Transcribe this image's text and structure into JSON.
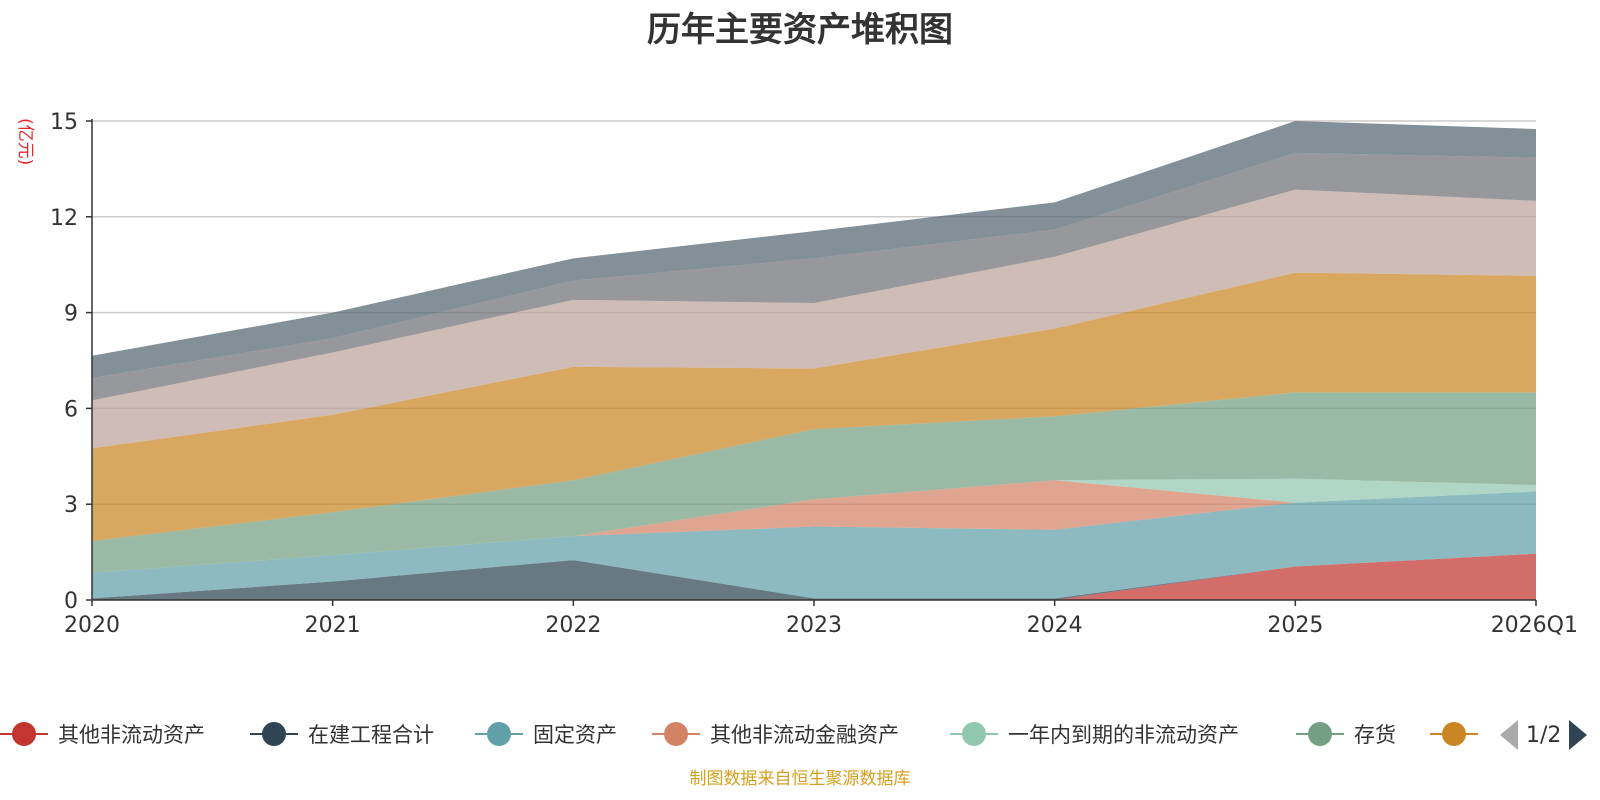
{
  "chart_data": {
    "type": "area",
    "stacked": true,
    "title": "历年主要资产堆积图",
    "ylabel": "(亿元)",
    "xlabel": "",
    "categories": [
      "2020",
      "2021",
      "2022",
      "2023",
      "2024",
      "2025",
      "2026Q1"
    ],
    "ylim": [
      0,
      15
    ],
    "yticks": [
      0,
      3,
      6,
      9,
      12,
      15
    ],
    "grid": true,
    "series": [
      {
        "name": "其他非流动资产",
        "color": "#c23531",
        "values": [
          0,
          0,
          0,
          0,
          0,
          1.05,
          1.45
        ]
      },
      {
        "name": "在建工程合计",
        "color": "#2f4554",
        "values": [
          0.05,
          0.58,
          1.25,
          0.05,
          0.05,
          0,
          0
        ]
      },
      {
        "name": "固定资产",
        "color": "#61a0a8",
        "values": [
          0.8,
          0.82,
          0.75,
          2.25,
          2.15,
          2.0,
          1.95
        ]
      },
      {
        "name": "其他非流动金融资产",
        "color": "#d48265",
        "values": [
          0,
          0,
          0,
          0.85,
          1.55,
          0,
          0
        ]
      },
      {
        "name": "一年内到期的非流动资产",
        "color": "#91c7ae",
        "values": [
          0,
          0,
          0,
          0,
          0,
          0.75,
          0.2
        ]
      },
      {
        "name": "存货",
        "color": "#749f83",
        "values": [
          1.0,
          1.35,
          1.75,
          2.2,
          2.0,
          2.7,
          2.9
        ]
      },
      {
        "name": "",
        "color": "#ca8622",
        "values": [
          2.9,
          3.05,
          3.55,
          1.9,
          2.75,
          3.75,
          3.65
        ]
      },
      {
        "name": "",
        "color": "#bda29a",
        "values": [
          1.5,
          1.95,
          2.1,
          2.05,
          2.25,
          2.6,
          2.35
        ]
      },
      {
        "name": "",
        "color": "#6e7074",
        "values": [
          0.7,
          0.45,
          0.6,
          1.4,
          0.85,
          1.15,
          1.35
        ]
      },
      {
        "name": "",
        "color": "#546570",
        "values": [
          0.7,
          0.8,
          0.7,
          0.85,
          0.85,
          1.0,
          0.9
        ]
      }
    ]
  },
  "legend": {
    "items": [
      {
        "name": "其他非流动资产",
        "color": "#c23531"
      },
      {
        "name": "在建工程合计",
        "color": "#2f4554"
      },
      {
        "name": "固定资产",
        "color": "#61a0a8"
      },
      {
        "name": "其他非流动金融资产",
        "color": "#d48265"
      },
      {
        "name": "一年内到期的非流动资产",
        "color": "#91c7ae"
      },
      {
        "name": "存货",
        "color": "#749f83"
      },
      {
        "name": "",
        "color": "#ca8622"
      }
    ],
    "page": "1/2"
  },
  "footer": "制图数据来自恒生聚源数据库"
}
